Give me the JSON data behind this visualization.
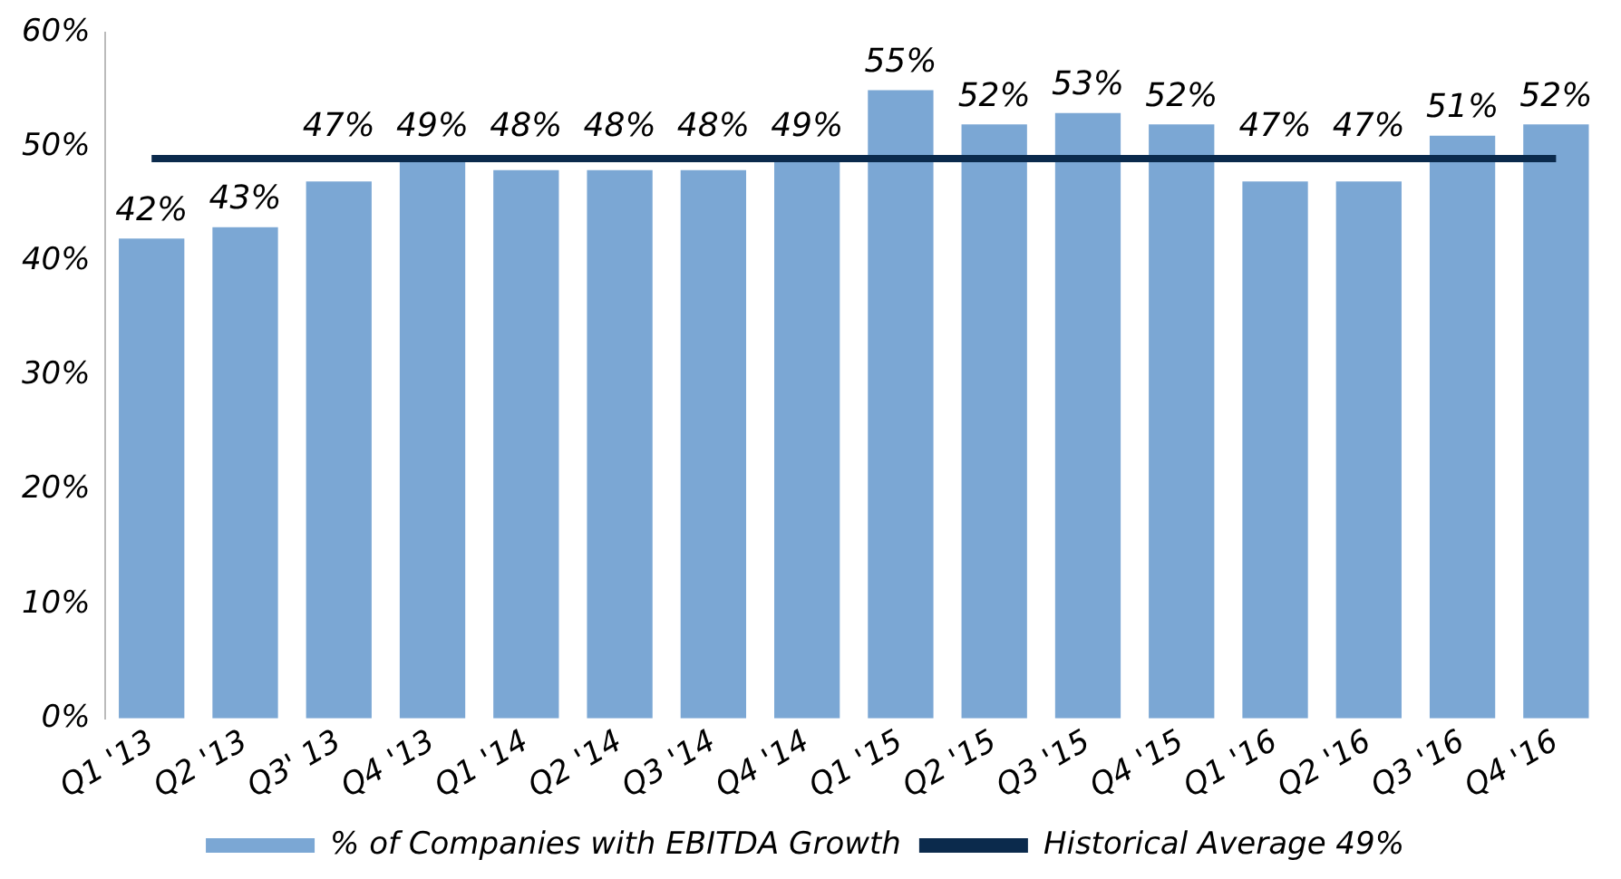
{
  "chart_data": {
    "type": "bar",
    "categories": [
      "Q1 '13",
      "Q2 '13",
      "Q3' 13",
      "Q4 '13",
      "Q1 '14",
      "Q2 '14",
      "Q3 '14",
      "Q4 '14",
      "Q1 '15",
      "Q2 '15",
      "Q3 '15",
      "Q4 '15",
      "Q1 '16",
      "Q2 '16",
      "Q3 '16",
      "Q4 '16"
    ],
    "series": [
      {
        "name": "% of Companies with EBITDA Growth",
        "color": "#7ba7d4",
        "values": [
          42,
          43,
          47,
          49,
          48,
          48,
          48,
          49,
          55,
          52,
          53,
          52,
          47,
          47,
          51,
          52
        ],
        "value_labels": [
          "42%",
          "43%",
          "47%",
          "49%",
          "48%",
          "48%",
          "48%",
          "49%",
          "55%",
          "52%",
          "53%",
          "52%",
          "47%",
          "47%",
          "51%",
          "52%"
        ]
      },
      {
        "name": "Historical Average 49%",
        "type": "line",
        "color": "#0b2a4c",
        "values": [
          49,
          49,
          49,
          49,
          49,
          49,
          49,
          49,
          49,
          49,
          49,
          49,
          49,
          49,
          49,
          49
        ]
      }
    ],
    "ylim": [
      0,
      60
    ],
    "yticks": [
      {
        "value": 0,
        "label": "0%"
      },
      {
        "value": 10,
        "label": "10%"
      },
      {
        "value": 20,
        "label": "20%"
      },
      {
        "value": 30,
        "label": "30%"
      },
      {
        "value": 40,
        "label": "40%"
      },
      {
        "value": 50,
        "label": "50%"
      },
      {
        "value": 60,
        "label": "60%"
      }
    ],
    "grid": false,
    "legend": "bottom",
    "marker": "none",
    "line_style": "solid"
  }
}
